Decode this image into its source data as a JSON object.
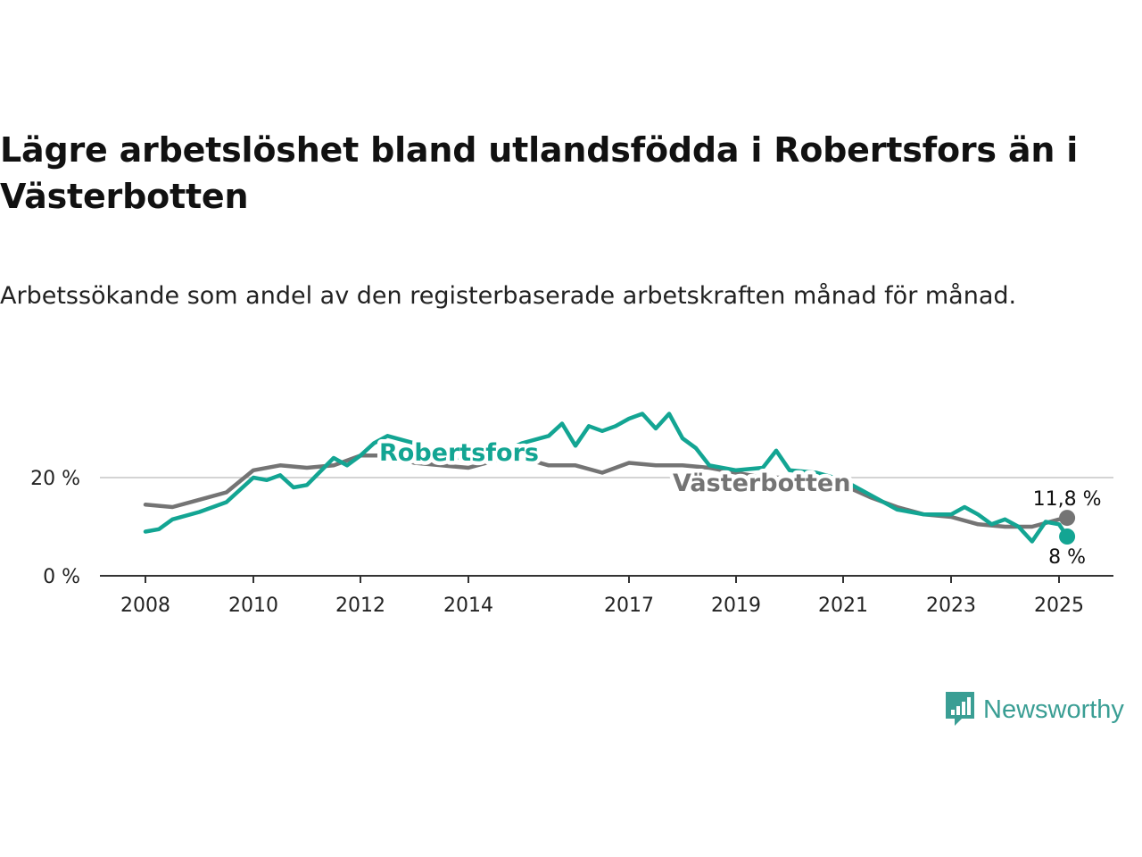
{
  "title": "Lägre arbetslöshet bland utlandsfödda i Robertsfors än i Västerbotten",
  "subtitle": "Arbetssökande som andel av den registerbaserade arbetskraften månad för månad.",
  "brand": {
    "name": "Newsworthy",
    "icon": "newsworthy-logo-icon",
    "color": "#3a9e94"
  },
  "chart_data": {
    "type": "line",
    "title": "Lägre arbetslöshet bland utlandsfödda i Robertsfors än i Västerbotten",
    "subtitle": "Arbetssökande som andel av den registerbaserade arbetskraften månad för månad.",
    "x_ticks": [
      "2008",
      "2010",
      "2012",
      "2014",
      "2017",
      "2019",
      "2021",
      "2023",
      "2025"
    ],
    "y_ticks": [
      "0 %",
      "20 %"
    ],
    "ylim": [
      0,
      35
    ],
    "grid": "horizontal",
    "series": [
      {
        "name": "Västerbotten",
        "color": "#747474",
        "end_label": "11,8 %",
        "points": [
          [
            2008.0,
            14.5
          ],
          [
            2008.5,
            14.0
          ],
          [
            2009.0,
            15.5
          ],
          [
            2009.5,
            17.0
          ],
          [
            2010.0,
            21.5
          ],
          [
            2010.5,
            22.5
          ],
          [
            2011.0,
            22.0
          ],
          [
            2011.5,
            22.5
          ],
          [
            2012.0,
            24.5
          ],
          [
            2012.5,
            24.5
          ],
          [
            2013.0,
            23.0
          ],
          [
            2013.5,
            22.5
          ],
          [
            2014.0,
            22.0
          ],
          [
            2014.5,
            23.5
          ],
          [
            2015.0,
            24.0
          ],
          [
            2015.5,
            22.5
          ],
          [
            2016.0,
            22.5
          ],
          [
            2016.5,
            21.0
          ],
          [
            2017.0,
            23.0
          ],
          [
            2017.5,
            22.5
          ],
          [
            2018.0,
            22.5
          ],
          [
            2018.5,
            22.0
          ],
          [
            2019.0,
            21.0
          ],
          [
            2019.5,
            20.0
          ],
          [
            2020.0,
            20.0
          ],
          [
            2020.5,
            19.5
          ],
          [
            2021.0,
            18.5
          ],
          [
            2021.5,
            16.0
          ],
          [
            2022.0,
            14.0
          ],
          [
            2022.5,
            12.5
          ],
          [
            2023.0,
            12.0
          ],
          [
            2023.5,
            10.5
          ],
          [
            2024.0,
            10.0
          ],
          [
            2024.5,
            10.0
          ],
          [
            2025.0,
            11.5
          ],
          [
            2025.15,
            11.8
          ]
        ]
      },
      {
        "name": "Robertsfors",
        "color": "#13a593",
        "end_label": "8 %",
        "points": [
          [
            2008.0,
            9.0
          ],
          [
            2008.25,
            9.5
          ],
          [
            2008.5,
            11.5
          ],
          [
            2009.0,
            13.0
          ],
          [
            2009.5,
            15.0
          ],
          [
            2010.0,
            20.0
          ],
          [
            2010.25,
            19.5
          ],
          [
            2010.5,
            20.5
          ],
          [
            2010.75,
            18.0
          ],
          [
            2011.0,
            18.5
          ],
          [
            2011.5,
            24.0
          ],
          [
            2011.75,
            22.5
          ],
          [
            2012.0,
            24.5
          ],
          [
            2012.25,
            27.0
          ],
          [
            2012.5,
            28.5
          ],
          [
            2013.0,
            27.0
          ],
          [
            2013.5,
            25.0
          ],
          [
            2014.0,
            23.5
          ],
          [
            2014.5,
            24.5
          ],
          [
            2015.0,
            27.0
          ],
          [
            2015.5,
            28.5
          ],
          [
            2015.75,
            31.0
          ],
          [
            2016.0,
            26.5
          ],
          [
            2016.25,
            30.5
          ],
          [
            2016.5,
            29.5
          ],
          [
            2016.75,
            30.5
          ],
          [
            2017.0,
            32.0
          ],
          [
            2017.25,
            33.0
          ],
          [
            2017.5,
            30.0
          ],
          [
            2017.75,
            33.0
          ],
          [
            2018.0,
            28.0
          ],
          [
            2018.25,
            26.0
          ],
          [
            2018.5,
            22.5
          ],
          [
            2019.0,
            21.5
          ],
          [
            2019.5,
            22.0
          ],
          [
            2019.75,
            25.5
          ],
          [
            2020.0,
            21.5
          ],
          [
            2020.5,
            21.0
          ],
          [
            2021.0,
            19.5
          ],
          [
            2021.5,
            16.5
          ],
          [
            2022.0,
            13.5
          ],
          [
            2022.5,
            12.5
          ],
          [
            2023.0,
            12.5
          ],
          [
            2023.25,
            14.0
          ],
          [
            2023.5,
            12.5
          ],
          [
            2023.75,
            10.5
          ],
          [
            2024.0,
            11.5
          ],
          [
            2024.25,
            10.0
          ],
          [
            2024.5,
            7.0
          ],
          [
            2024.75,
            11.0
          ],
          [
            2025.0,
            10.5
          ],
          [
            2025.15,
            8.0
          ]
        ]
      }
    ]
  }
}
